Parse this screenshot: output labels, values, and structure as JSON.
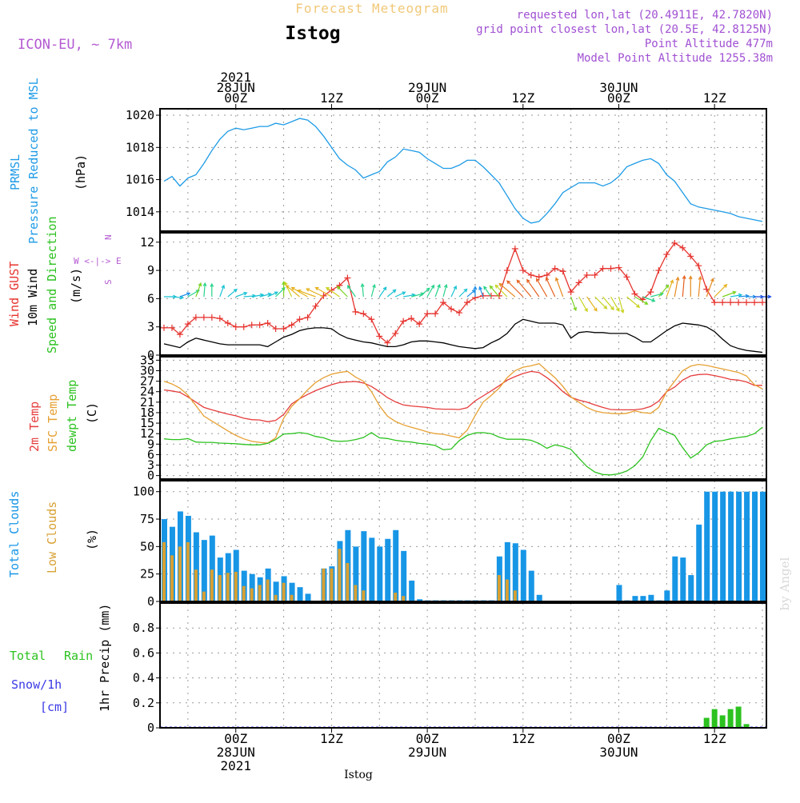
{
  "header": {
    "product": "Forecast Meteogram",
    "station": "Istog",
    "model": "ICON-EU, ~ 7km",
    "requested": "requested lon,lat (20.4911E, 42.7820N)",
    "gridpoint": "grid point closest lon,lat (20.5E, 42.8125N)",
    "point_alt": "Point Altitude 477m",
    "model_alt": "Model Point Altitude 1255.38m",
    "footer_station": "Istog",
    "watermark": "by Angel"
  },
  "time_axis": {
    "top": [
      {
        "h": 0,
        "lines": [
          "2021",
          "28JUN",
          "00Z"
        ]
      },
      {
        "h": 12,
        "lines": [
          "12Z"
        ]
      },
      {
        "h": 24,
        "lines": [
          "29JUN",
          "00Z"
        ]
      },
      {
        "h": 36,
        "lines": [
          "12Z"
        ]
      },
      {
        "h": 48,
        "lines": [
          "30JUN",
          "00Z"
        ]
      },
      {
        "h": 60,
        "lines": [
          "12Z"
        ]
      }
    ],
    "bottom": [
      {
        "h": 0,
        "lines": [
          "00Z",
          "28JUN",
          "2021"
        ]
      },
      {
        "h": 12,
        "lines": [
          "12Z"
        ]
      },
      {
        "h": 24,
        "lines": [
          "00Z",
          "29JUN"
        ]
      },
      {
        "h": 36,
        "lines": [
          "12Z"
        ]
      },
      {
        "h": 48,
        "lines": [
          "00Z",
          "30JUN"
        ]
      },
      {
        "h": 60,
        "lines": [
          "12Z"
        ]
      }
    ]
  },
  "labels": {
    "p1": [
      "PRMSL",
      "Pressure Reduced to MSL",
      "(hPa)"
    ],
    "p2": [
      "Wind GUST",
      "10m Wind",
      "Speed and Direction",
      "(m/s)"
    ],
    "compass": [
      "N",
      "W <-|-> E",
      "S"
    ],
    "p3": [
      "2m Temp",
      "SFC Temp",
      "dewpt Temp",
      "(C)"
    ],
    "p4": [
      "Total Clouds",
      "Low Clouds",
      "(%)"
    ],
    "p5": [
      "Total",
      "Rain",
      "Snow/1h",
      "[cm]",
      "1hr Precip (mm)"
    ]
  },
  "colors": {
    "pressure": "#1e9be6",
    "gust": "#e6332e",
    "wind": "#000000",
    "t2m": "#e63c3c",
    "tsfc": "#e6a032",
    "dewpt": "#2cc21f",
    "total_clouds": "#1896e6",
    "low_clouds": "#d8a032",
    "rain": "#2cc21f",
    "snow": "#3a3ae6",
    "model_label": "#b45ad2",
    "header_info": "#a050d2",
    "title_faint": "#f0c878"
  },
  "chart_data": [
    {
      "type": "line",
      "name": "pressure",
      "ylim": [
        1012.8,
        1020.4
      ],
      "yticks": [
        1014,
        1016,
        1018,
        1020
      ],
      "grid": true,
      "x": [
        -9,
        -8,
        -7,
        -6,
        -5,
        -4,
        -3,
        -2,
        -1,
        0,
        1,
        2,
        3,
        4,
        5,
        6,
        7,
        8,
        9,
        10,
        11,
        12,
        13,
        14,
        15,
        16,
        17,
        18,
        19,
        20,
        21,
        22,
        23,
        24,
        25,
        26,
        27,
        28,
        29,
        30,
        31,
        32,
        33,
        34,
        35,
        36,
        37,
        38,
        39,
        40,
        41,
        42,
        43,
        44,
        45,
        46,
        47,
        48,
        49,
        50,
        51,
        52,
        53,
        54,
        55,
        56,
        57,
        58,
        59,
        60,
        61,
        62,
        63,
        64,
        65,
        66
      ],
      "series": [
        {
          "values": [
            1015.9,
            1016.2,
            1015.6,
            1016.1,
            1016.3,
            1017.0,
            1017.8,
            1018.5,
            1019.0,
            1019.2,
            1019.1,
            1019.2,
            1019.3,
            1019.3,
            1019.5,
            1019.4,
            1019.6,
            1019.8,
            1019.7,
            1019.3,
            1018.7,
            1018.0,
            1017.3,
            1016.9,
            1016.6,
            1016.1,
            1016.3,
            1016.5,
            1017.1,
            1017.4,
            1017.9,
            1017.8,
            1017.7,
            1017.3,
            1017.0,
            1016.7,
            1016.7,
            1016.9,
            1017.2,
            1017.2,
            1016.8,
            1016.3,
            1015.8,
            1015.0,
            1014.2,
            1013.6,
            1013.3,
            1013.4,
            1013.9,
            1014.5,
            1015.2,
            1015.5,
            1015.8,
            1015.8,
            1015.8,
            1015.6,
            1015.8,
            1016.2,
            1016.8,
            1017.0,
            1017.2,
            1017.3,
            1017.0,
            1016.3,
            1015.9,
            1015.2,
            1014.5,
            1014.3,
            1014.2,
            1014.1,
            1014.0,
            1013.9,
            1013.7,
            1013.6,
            1013.5,
            1013.4
          ]
        }
      ]
    },
    {
      "type": "line",
      "name": "wind",
      "ylim": [
        0,
        13
      ],
      "yticks": [
        0,
        3,
        6,
        9,
        12
      ],
      "grid": true,
      "x": [
        -9,
        -8,
        -7,
        -6,
        -5,
        -4,
        -3,
        -2,
        -1,
        0,
        1,
        2,
        3,
        4,
        5,
        6,
        7,
        8,
        9,
        10,
        11,
        12,
        13,
        14,
        15,
        16,
        17,
        18,
        19,
        20,
        21,
        22,
        23,
        24,
        25,
        26,
        27,
        28,
        29,
        30,
        31,
        32,
        33,
        34,
        35,
        36,
        37,
        38,
        39,
        40,
        41,
        42,
        43,
        44,
        45,
        46,
        47,
        48,
        49,
        50,
        51,
        52,
        53,
        54,
        55,
        56,
        57,
        58,
        59,
        60,
        61,
        62,
        63,
        64,
        65,
        66
      ],
      "series": [
        {
          "values": [
            2.9,
            2.9,
            2.2,
            3.3,
            4.0,
            4.0,
            4.0,
            3.9,
            3.4,
            3.0,
            3.0,
            3.2,
            3.2,
            3.4,
            2.8,
            2.8,
            3.2,
            3.8,
            4.0,
            5.2,
            6.3,
            6.9,
            7.4,
            8.2,
            4.6,
            4.4,
            3.8,
            2.0,
            1.3,
            2.3,
            3.6,
            3.9,
            3.3,
            4.4,
            4.4,
            5.6,
            4.9,
            4.5,
            5.6,
            6.1,
            6.3,
            6.3,
            6.3,
            9.0,
            11.3,
            9.0,
            8.5,
            8.3,
            8.5,
            9.2,
            8.9,
            6.7,
            7.7,
            8.5,
            8.5,
            9.2,
            9.2,
            9.3,
            8.3,
            6.5,
            5.9,
            6.7,
            9.0,
            10.7,
            11.9,
            11.4,
            10.5,
            9.5,
            7.0,
            5.6,
            5.6,
            5.6,
            5.6,
            5.6,
            5.6,
            5.6
          ]
        },
        {
          "values": [
            1.2,
            1.0,
            0.8,
            1.4,
            1.8,
            1.6,
            1.4,
            1.2,
            1.1,
            1.1,
            1.1,
            1.1,
            1.1,
            0.9,
            1.4,
            1.9,
            2.2,
            2.6,
            2.8,
            2.9,
            2.9,
            2.8,
            2.2,
            1.8,
            1.6,
            1.4,
            1.3,
            1.1,
            0.9,
            0.9,
            1.1,
            1.4,
            1.5,
            1.5,
            1.4,
            1.3,
            1.1,
            0.9,
            0.8,
            0.7,
            0.8,
            1.3,
            1.7,
            2.3,
            3.3,
            3.8,
            3.6,
            3.4,
            3.4,
            3.4,
            3.2,
            1.8,
            2.4,
            2.5,
            2.4,
            2.4,
            2.3,
            2.3,
            2.3,
            1.9,
            1.4,
            1.4,
            2.0,
            2.6,
            3.1,
            3.4,
            3.3,
            3.2,
            3.0,
            2.5,
            1.7,
            1.0,
            0.7,
            0.5,
            0.4,
            0.3
          ]
        }
      ],
      "barb_directions_deg": [
        270,
        275,
        250,
        240,
        200,
        185,
        180,
        200,
        230,
        250,
        265,
        260,
        255,
        245,
        225,
        180,
        155,
        130,
        120,
        110,
        115,
        120,
        125,
        135,
        145,
        175,
        195,
        215,
        230,
        245,
        260,
        255,
        230,
        210,
        200,
        195,
        205,
        225,
        230,
        180,
        160,
        145,
        140,
        135,
        130,
        135,
        140,
        145,
        150,
        155,
        160,
        340,
        330,
        325,
        315,
        320,
        330,
        345,
        310,
        300,
        290,
        255,
        220,
        200,
        190,
        185,
        180,
        185,
        200,
        225,
        250,
        260,
        265,
        270,
        270,
        270
      ]
    },
    {
      "type": "line",
      "name": "temperature",
      "ylim": [
        -1,
        34
      ],
      "yticks": [
        0,
        3,
        6,
        9,
        12,
        15,
        18,
        21,
        24,
        27,
        30,
        33
      ],
      "grid": true,
      "x": [
        -9,
        -8,
        -7,
        -6,
        -5,
        -4,
        -3,
        -2,
        -1,
        0,
        1,
        2,
        3,
        4,
        5,
        6,
        7,
        8,
        9,
        10,
        11,
        12,
        13,
        14,
        15,
        16,
        17,
        18,
        19,
        20,
        21,
        22,
        23,
        24,
        25,
        26,
        27,
        28,
        29,
        30,
        31,
        32,
        33,
        34,
        35,
        36,
        37,
        38,
        39,
        40,
        41,
        42,
        43,
        44,
        45,
        46,
        47,
        48,
        49,
        50,
        51,
        52,
        53,
        54,
        55,
        56,
        57,
        58,
        59,
        60,
        61,
        62,
        63,
        64,
        65,
        66
      ],
      "series": [
        {
          "values": [
            24.5,
            24.2,
            23.8,
            22.5,
            21.0,
            19.5,
            18.8,
            18.2,
            17.6,
            17.1,
            16.4,
            16.0,
            15.9,
            15.4,
            15.8,
            17.5,
            20.5,
            22.0,
            23.2,
            24.3,
            25.2,
            26.0,
            26.6,
            26.8,
            26.9,
            26.5,
            25.5,
            24.0,
            22.3,
            21.1,
            20.2,
            19.9,
            19.7,
            19.5,
            19.1,
            19.0,
            19.0,
            18.9,
            19.4,
            21.4,
            22.8,
            24.2,
            25.7,
            27.3,
            28.3,
            29.2,
            29.8,
            29.5,
            28.0,
            26.2,
            24.0,
            22.4,
            21.6,
            21.0,
            20.2,
            19.5,
            18.9,
            18.8,
            18.8,
            18.8,
            19.1,
            19.8,
            21.3,
            24.0,
            25.3,
            27.3,
            28.5,
            28.9,
            29.0,
            28.6,
            28.1,
            27.5,
            27.3,
            26.8,
            25.8,
            25.8
          ]
        },
        {
          "values": [
            27.0,
            26.2,
            25.0,
            23.0,
            20.0,
            17.0,
            15.6,
            14.2,
            12.8,
            11.5,
            10.5,
            9.8,
            9.5,
            9.3,
            10.8,
            16.4,
            19.8,
            22.0,
            24.5,
            26.6,
            28.0,
            29.0,
            29.5,
            29.8,
            28.2,
            27.0,
            24.0,
            20.0,
            17.0,
            15.5,
            14.5,
            13.8,
            13.2,
            12.5,
            12.0,
            11.8,
            11.3,
            10.8,
            13.0,
            17.2,
            21.0,
            22.9,
            25.0,
            28.0,
            30.0,
            31.0,
            31.4,
            32.0,
            30.0,
            28.0,
            25.5,
            22.5,
            21.0,
            19.5,
            18.5,
            18.0,
            17.8,
            17.7,
            17.8,
            18.5,
            18.0,
            17.8,
            19.5,
            24.0,
            27.0,
            30.0,
            31.3,
            31.8,
            31.5,
            31.0,
            30.5,
            30.0,
            29.5,
            28.5,
            26.0,
            24.8
          ]
        },
        {
          "values": [
            10.5,
            10.3,
            10.3,
            10.6,
            9.6,
            9.5,
            9.5,
            9.3,
            9.2,
            9.1,
            8.9,
            8.8,
            8.8,
            9.2,
            10.3,
            11.9,
            12.0,
            12.3,
            12.0,
            11.2,
            10.8,
            10.0,
            9.8,
            9.9,
            10.3,
            10.9,
            12.3,
            10.8,
            10.6,
            10.1,
            9.8,
            9.6,
            9.2,
            9.0,
            8.6,
            7.4,
            7.6,
            10.0,
            11.5,
            12.2,
            12.3,
            12.0,
            11.0,
            10.4,
            10.4,
            10.4,
            10.1,
            9.2,
            7.8,
            8.8,
            8.3,
            7.5,
            5.0,
            2.6,
            1.0,
            0.3,
            0.2,
            0.5,
            1.3,
            2.8,
            5.3,
            10.0,
            13.5,
            12.5,
            11.5,
            8.0,
            5.0,
            6.5,
            8.8,
            9.8,
            10.0,
            10.5,
            10.9,
            11.2,
            12.0,
            13.8
          ]
        }
      ]
    },
    {
      "type": "bar",
      "name": "clouds",
      "ylim": [
        0,
        110
      ],
      "yticks": [
        0,
        25,
        50,
        75,
        100
      ],
      "grid": true,
      "x": [
        -9,
        -8,
        -7,
        -6,
        -5,
        -4,
        -3,
        -2,
        -1,
        0,
        1,
        2,
        3,
        4,
        5,
        6,
        7,
        8,
        9,
        10,
        11,
        12,
        13,
        14,
        15,
        16,
        17,
        18,
        19,
        20,
        21,
        22,
        23,
        24,
        25,
        26,
        27,
        28,
        29,
        30,
        31,
        32,
        33,
        34,
        35,
        36,
        37,
        38,
        39,
        40,
        41,
        42,
        43,
        44,
        45,
        46,
        47,
        48,
        49,
        50,
        51,
        52,
        53,
        54,
        55,
        56,
        57,
        58,
        59,
        60,
        61,
        62,
        63,
        64,
        65,
        66
      ],
      "series": [
        {
          "values": [
            75,
            68,
            82,
            78,
            63,
            56,
            60,
            40,
            44,
            47,
            28,
            25,
            22,
            30,
            18,
            23,
            17,
            13,
            7,
            0,
            30,
            32,
            55,
            65,
            50,
            64,
            58,
            50,
            57,
            65,
            46,
            19,
            2,
            1,
            1,
            1,
            1,
            1,
            1,
            1,
            1,
            1,
            41,
            54,
            53,
            47,
            28,
            6,
            0,
            0,
            0,
            0,
            0,
            0,
            0,
            0,
            0,
            15,
            1,
            5,
            5,
            6,
            1,
            10,
            41,
            40,
            24,
            70,
            100,
            100,
            100,
            100,
            100,
            100,
            100,
            100
          ]
        },
        {
          "values": [
            54,
            42,
            50,
            54,
            29,
            9,
            29,
            24,
            26,
            27,
            14,
            12,
            15,
            20,
            6,
            17,
            6,
            0,
            0,
            0,
            30,
            30,
            48,
            35,
            15,
            10,
            0,
            0,
            0,
            8,
            5,
            0,
            0,
            0,
            0,
            0,
            0,
            0,
            0,
            0,
            0,
            0,
            24,
            20,
            10,
            0,
            0,
            0,
            0,
            0,
            0,
            0,
            0,
            0,
            0,
            0,
            0,
            0,
            0,
            0,
            0,
            0,
            0,
            0,
            0,
            0,
            0,
            0,
            0,
            0,
            0,
            0,
            0,
            0,
            0,
            0
          ]
        }
      ]
    },
    {
      "type": "bar",
      "name": "precip",
      "ylim": [
        0,
        1.0
      ],
      "yticks": [
        0,
        0.2,
        0.4,
        0.6,
        0.8
      ],
      "grid": true,
      "x": [
        59,
        60,
        61,
        62,
        63,
        64,
        65
      ],
      "series": [
        {
          "values": [
            0.08,
            0.15,
            0.1,
            0.15,
            0.17,
            0.03,
            0.0
          ]
        }
      ]
    }
  ]
}
